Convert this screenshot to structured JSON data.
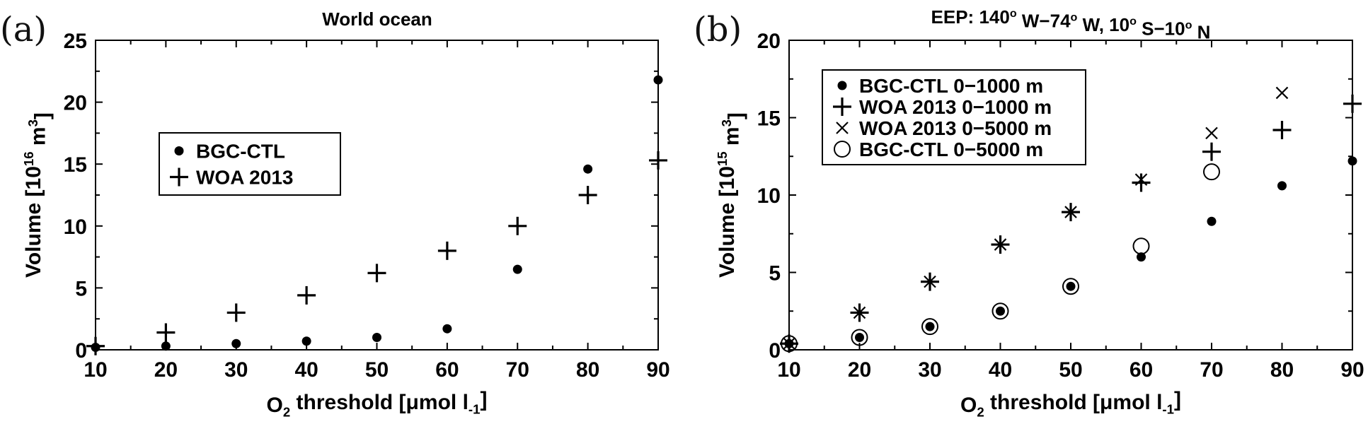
{
  "chart_data": [
    {
      "type": "scatter",
      "panel_label": "(a)",
      "title": "World ocean",
      "xlabel_parts": [
        "O",
        "2",
        " threshold [μmol l",
        "-1",
        "]"
      ],
      "ylabel_parts": [
        "Volume [10",
        "16",
        " m",
        "3",
        "]"
      ],
      "x": [
        10,
        20,
        30,
        40,
        50,
        60,
        70,
        80,
        90
      ],
      "xlim": [
        10,
        90
      ],
      "ylim": [
        0,
        25
      ],
      "xticks": [
        10,
        20,
        30,
        40,
        50,
        60,
        70,
        80,
        90
      ],
      "yticks": [
        0,
        5,
        10,
        15,
        20,
        25
      ],
      "grid": false,
      "legend_position": "upper-left",
      "series": [
        {
          "name": "BGC-CTL",
          "marker": "dot",
          "values": [
            0.2,
            0.3,
            0.5,
            0.7,
            1.0,
            1.7,
            6.5,
            14.6,
            21.8
          ]
        },
        {
          "name": "WOA 2013",
          "marker": "plus",
          "values": [
            0.3,
            1.4,
            3.0,
            4.4,
            6.2,
            8.0,
            10.0,
            12.5,
            15.3
          ]
        }
      ]
    },
    {
      "type": "scatter",
      "panel_label": "(b)",
      "title_parts": [
        "EEP: 140",
        "o",
        " W−74",
        "o",
        " W, 10",
        "o",
        " S−10",
        "o",
        " N"
      ],
      "xlabel_parts": [
        "O",
        "2",
        " threshold [μmol l",
        "-1",
        "]"
      ],
      "ylabel_parts": [
        "Volume [10",
        "15",
        " m",
        "3",
        "]"
      ],
      "x": [
        10,
        20,
        30,
        40,
        50,
        60,
        70,
        80,
        90
      ],
      "xlim": [
        10,
        90
      ],
      "ylim": [
        0,
        20
      ],
      "xticks": [
        10,
        20,
        30,
        40,
        50,
        60,
        70,
        80,
        90
      ],
      "yticks": [
        0,
        5,
        10,
        15,
        20
      ],
      "grid": false,
      "legend_position": "upper-left",
      "series": [
        {
          "name": "BGC-CTL 0−1000 m",
          "marker": "dot",
          "values": [
            0.4,
            0.8,
            1.5,
            2.5,
            4.1,
            6.0,
            8.3,
            10.6,
            12.2
          ]
        },
        {
          "name": "WOA 2013 0−1000 m",
          "marker": "plus",
          "values": [
            0.4,
            2.4,
            4.4,
            6.8,
            8.9,
            10.8,
            12.8,
            14.2,
            15.9
          ]
        },
        {
          "name": "WOA 2013 0−5000 m",
          "marker": "x",
          "x": [
            10,
            20,
            30,
            40,
            50,
            60,
            70,
            80
          ],
          "values": [
            0.4,
            2.4,
            4.4,
            6.8,
            8.9,
            11.0,
            14.0,
            16.6
          ]
        },
        {
          "name": "BGC-CTL 0−5000 m",
          "marker": "circle",
          "x": [
            10,
            20,
            30,
            40,
            50,
            60,
            70
          ],
          "values": [
            0.4,
            0.8,
            1.5,
            2.5,
            4.1,
            6.7,
            11.5
          ]
        }
      ]
    }
  ]
}
